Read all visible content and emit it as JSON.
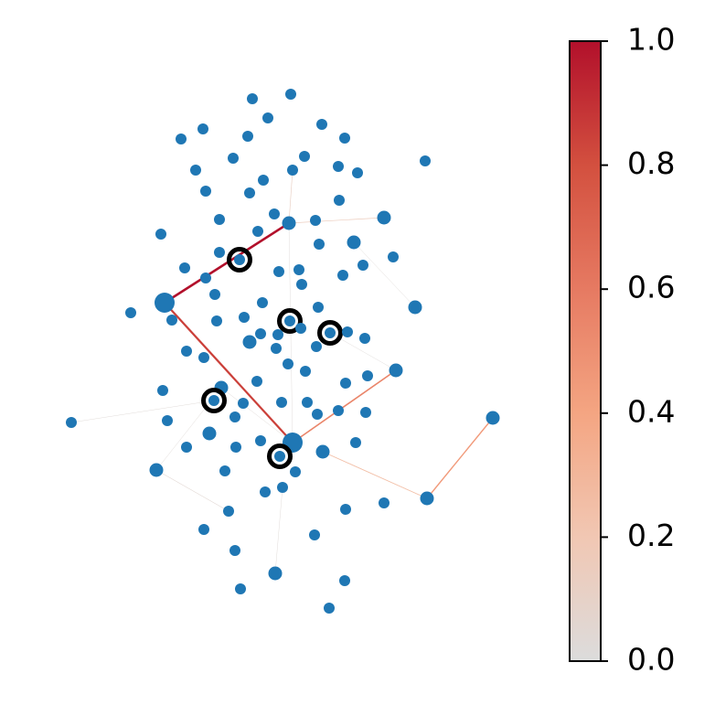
{
  "chart_data": {
    "type": "network",
    "edge_weights": [
      1.0,
      0.85,
      0.55,
      0.45,
      0.25,
      0.15,
      0.12,
      0.03,
      0.03,
      0.03,
      0.02,
      0.02,
      0.02,
      0.05,
      0.03
    ],
    "node_color": "#1f77b4",
    "highlight_color": "#000000",
    "colormap": [
      "#dcdcdc",
      "#f1c7b3",
      "#f4a582",
      "#e67a62",
      "#d3503f",
      "#b2102b"
    ],
    "clim": [
      0,
      1
    ],
    "cticks": [
      {
        "value": 0,
        "label": "0.0"
      },
      0.2,
      0.4,
      0.6,
      0.8,
      {
        "value": 1,
        "label": "1.0"
      }
    ]
  }
}
